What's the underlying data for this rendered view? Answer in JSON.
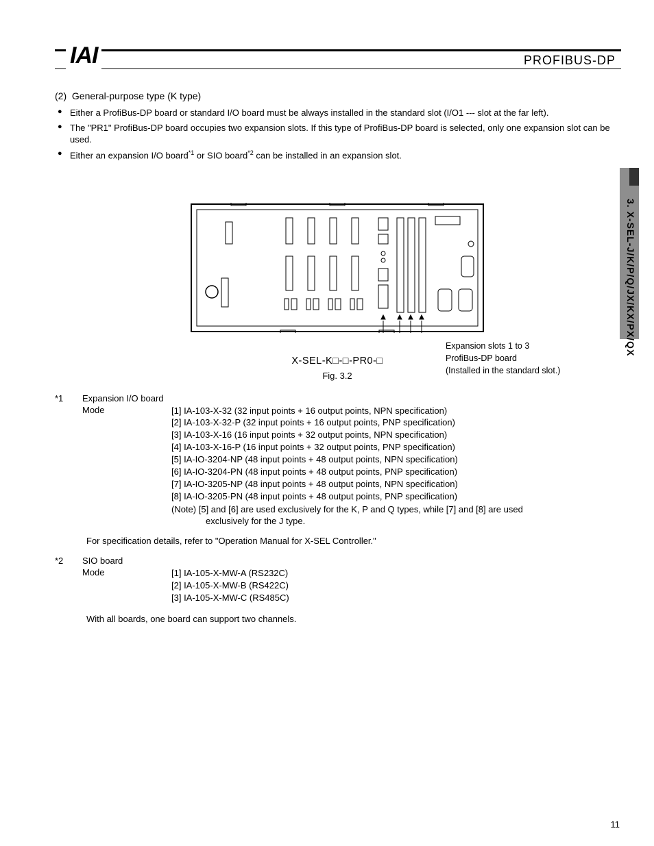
{
  "header": {
    "logo": "IAI",
    "product": "PROFIBUS-DP"
  },
  "sidebar": {
    "chapter": "3. X-SEL-J/K/P/Q/JX/KX/PX/QX"
  },
  "section": {
    "number": "(2)",
    "title": "General-purpose type (K type)"
  },
  "bullets": [
    "Either a ProfiBus-DP board or standard I/O board must be always installed in the standard slot (I/O1 --- slot at the far left).",
    "The \"PR1\" ProfiBus-DP board occupies two expansion slots. If this type of ProfiBus-DP board is selected, only one expansion slot can be used.",
    "Either an expansion I/O board*1 or SIO board*2 can be installed in an expansion slot."
  ],
  "figure": {
    "callout1": "Expansion slots 1 to 3",
    "callout2": "ProfiBus-DP board",
    "callout3": "(Installed in the standard slot.)",
    "model": "X-SEL-K□-□-PR0-□",
    "caption": "Fig. 3.2"
  },
  "note1": {
    "tag": "*1",
    "head": "Expansion I/O board",
    "mode_label": "Mode",
    "items": [
      "[1] IA-103-X-32 (32 input points + 16 output points, NPN specification)",
      "[2] IA-103-X-32-P (32 input points + 16 output points, PNP specification)",
      "[3] IA-103-X-16 (16 input points + 32 output points, NPN specification)",
      "[4] IA-103-X-16-P (16 input points + 32 output points, PNP specification)",
      "[5] IA-IO-3204-NP (48 input points + 48 output points, NPN specification)",
      "[6] IA-IO-3204-PN (48 input points + 48 output points, PNP specification)",
      "[7] IA-IO-3205-NP (48 input points + 48 output points, NPN specification)",
      "[8] IA-IO-3205-PN (48 input points + 48 output points, PNP specification)"
    ],
    "note_line1": "(Note)  [5] and [6] are used exclusively for the K, P and Q types, while [7] and [8] are used",
    "note_line2": "exclusively for the J type.",
    "spec_ref": "For specification details, refer to \"Operation Manual for X-SEL Controller.\""
  },
  "note2": {
    "tag": "*2",
    "head": "SIO board",
    "mode_label": "Mode",
    "items": [
      "[1] IA-105-X-MW-A (RS232C)",
      "[2] IA-105-X-MW-B (RS422C)",
      "[3] IA-105-X-MW-C (RS485C)"
    ],
    "footer": "With all boards, one board can support two channels."
  },
  "page_number": "11",
  "colors": {
    "text": "#000000",
    "bg": "#ffffff",
    "sidebar": "#8e8e8e",
    "sidebar_tab": "#333333",
    "device_stroke": "#000000"
  }
}
